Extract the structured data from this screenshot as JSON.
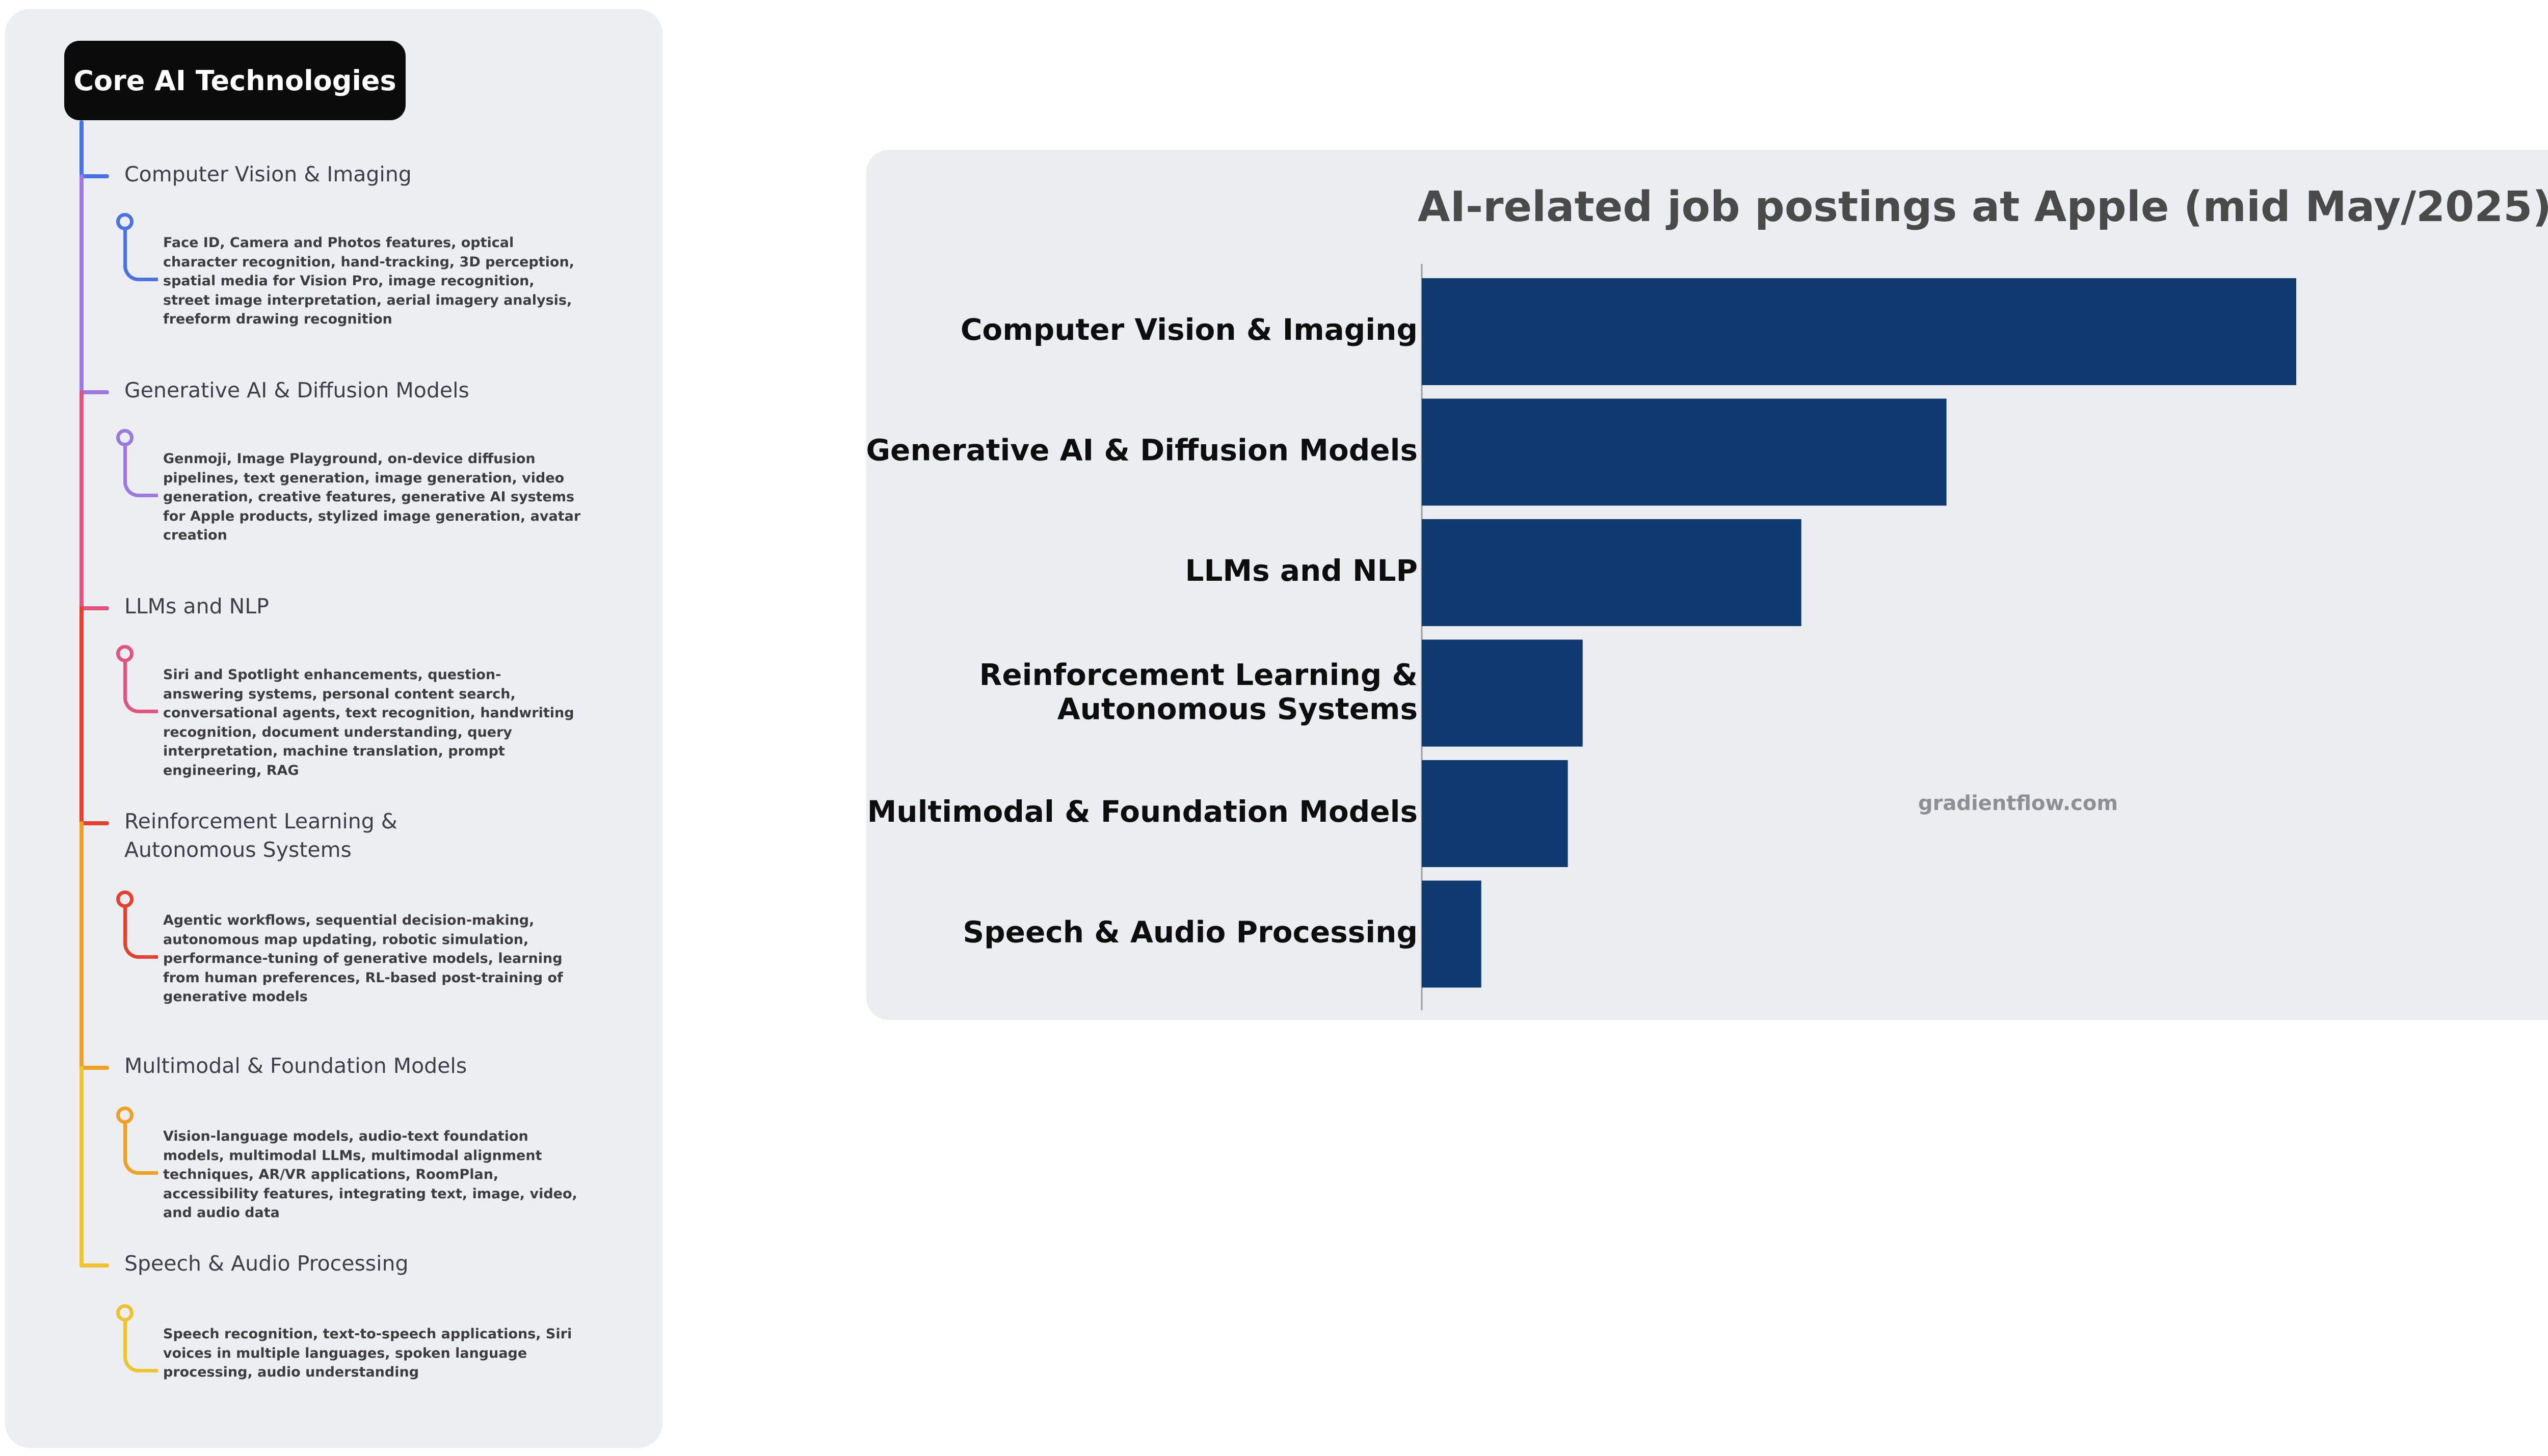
{
  "mindmap": {
    "title": "Core AI Technologies",
    "branches": [
      {
        "label": "Computer Vision & Imaging",
        "color": "#4a72e6",
        "description": "Face ID, Camera and Photos features, optical character recognition, hand-tracking, 3D perception, spatial media for Vision Pro, image recognition, street image interpretation, aerial imagery analysis, freeform drawing recognition"
      },
      {
        "label": "Generative AI & Diffusion Models",
        "color": "#9a79e0",
        "description": "Genmoji, Image Playground, on-device diffusion pipelines, text generation, image generation, video generation, creative features, generative AI systems for Apple products, stylized image generation, avatar creation"
      },
      {
        "label": "LLMs and NLP",
        "color": "#e2537f",
        "description": "Siri and Spotlight enhancements, question-answering systems, personal content search, conversational agents, text recognition, handwriting recognition, document understanding, query interpretation, machine translation, prompt engineering, RAG"
      },
      {
        "label": "Reinforcement Learning & Autonomous Systems",
        "color": "#e4412e",
        "description": "Agentic workflows, sequential decision-making, autonomous map updating, robotic simulation, performance-tuning of generative models, learning from human preferences, RL-based post-training of generative models"
      },
      {
        "label": "Multimodal & Foundation Models",
        "color": "#eea122",
        "description": "Vision-language models, audio-text foundation models, multimodal LLMs, multimodal alignment techniques, AR/VR applications, RoomPlan, accessibility features, integrating text, image, video, and audio data"
      },
      {
        "label": "Speech & Audio Processing",
        "color": "#efc32e",
        "description": "Speech recognition, text-to-speech applications, Siri voices in multiple languages, spoken language processing, audio understanding"
      }
    ]
  },
  "chart_data": {
    "type": "bar",
    "orientation": "horizontal",
    "title": "AI-related job postings at Apple (mid May/2025)",
    "categories": [
      "Computer Vision & Imaging",
      "Generative AI & Diffusion Models",
      "LLMs and NLP",
      "Reinforcement Learning & Autonomous Systems",
      "Multimodal & Foundation Models",
      "Speech & Audio Processing"
    ],
    "values": [
      100,
      60,
      43.4,
      18.4,
      16.7,
      6.8
    ],
    "xlim": [
      0,
      100
    ],
    "bar_color": "#0f3a70",
    "grid": false,
    "legend": "none",
    "watermark": "gradientflow.com"
  }
}
